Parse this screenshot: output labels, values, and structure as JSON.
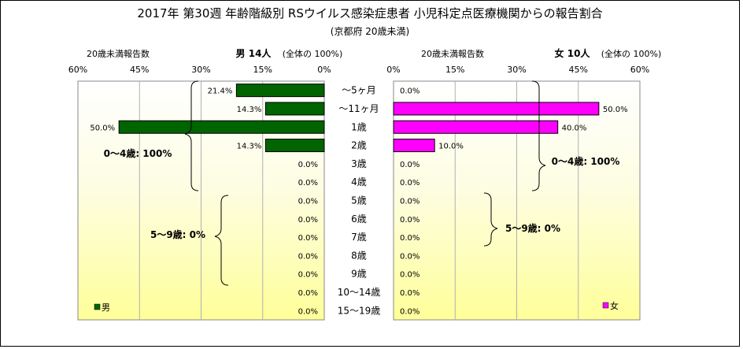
{
  "chart_data": {
    "type": "bar",
    "title": "2017年 第30週 年齢階級別 RSウイルス感染症患者 小児科定点医療機関からの報告割合",
    "subtitle": "(京都府 20歳未満)",
    "categories": [
      "～5ヶ月",
      "～11ヶ月",
      "1歳",
      "2歳",
      "3歳",
      "4歳",
      "5歳",
      "6歳",
      "7歳",
      "8歳",
      "9歳",
      "10～14歳",
      "15～19歳"
    ],
    "xlim": [
      0,
      60
    ],
    "xticks": [
      "60%",
      "45%",
      "30%",
      "15%",
      "0%",
      "0%",
      "15%",
      "30%",
      "45%",
      "60%"
    ],
    "grid": true,
    "panels": [
      {
        "side": "left",
        "header_left": "20歳未満報告数",
        "header_bold": "男 14人",
        "header_right": "(全体の 100%)",
        "legend": "男",
        "color": "#006400",
        "values": [
          21.4,
          14.3,
          50.0,
          14.3,
          0.0,
          0.0,
          0.0,
          0.0,
          0.0,
          0.0,
          0.0,
          0.0,
          0.0
        ],
        "labels": [
          "21.4%",
          "14.3%",
          "50.0%",
          "14.3%",
          "0.0%",
          "0.0%",
          "0.0%",
          "0.0%",
          "0.0%",
          "0.0%",
          "0.0%",
          "0.0%",
          "0.0%"
        ],
        "groups": [
          "0～4歳: 100%",
          "5～9歳: 0%"
        ]
      },
      {
        "side": "right",
        "header_left": "20歳未満報告数",
        "header_bold": "女 10人",
        "header_right": "(全体の 100%)",
        "legend": "女",
        "color": "#FF00FF",
        "values": [
          0.0,
          50.0,
          40.0,
          10.0,
          0.0,
          0.0,
          0.0,
          0.0,
          0.0,
          0.0,
          0.0,
          0.0,
          0.0
        ],
        "labels": [
          "0.0%",
          "50.0%",
          "40.0%",
          "10.0%",
          "0.0%",
          "0.0%",
          "0.0%",
          "0.0%",
          "0.0%",
          "0.0%",
          "0.0%",
          "0.0%",
          "0.0%"
        ],
        "groups": [
          "0～4歳: 100%",
          "5～9歳: 0%"
        ]
      }
    ]
  }
}
